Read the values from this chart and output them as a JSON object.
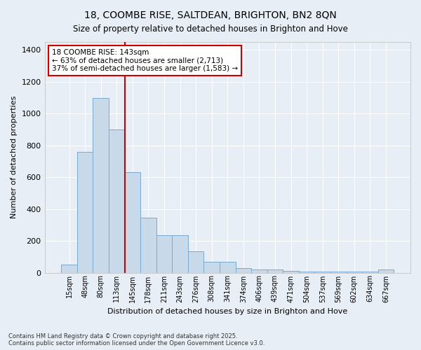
{
  "title1": "18, COOMBE RISE, SALTDEAN, BRIGHTON, BN2 8QN",
  "title2": "Size of property relative to detached houses in Brighton and Hove",
  "xlabel": "Distribution of detached houses by size in Brighton and Hove",
  "ylabel": "Number of detached properties",
  "categories": [
    "15sqm",
    "48sqm",
    "80sqm",
    "113sqm",
    "145sqm",
    "178sqm",
    "211sqm",
    "243sqm",
    "276sqm",
    "308sqm",
    "341sqm",
    "374sqm",
    "406sqm",
    "439sqm",
    "471sqm",
    "504sqm",
    "537sqm",
    "569sqm",
    "602sqm",
    "634sqm",
    "667sqm"
  ],
  "bar_heights": [
    50,
    760,
    1100,
    900,
    630,
    345,
    235,
    235,
    135,
    70,
    70,
    30,
    20,
    20,
    10,
    5,
    5,
    5,
    5,
    5,
    18
  ],
  "bar_color": "#c8daea",
  "bar_edge_color": "#7baad0",
  "vline_color": "#cc0000",
  "annotation_text": "18 COOMBE RISE: 143sqm\n← 63% of detached houses are smaller (2,713)\n37% of semi-detached houses are larger (1,583) →",
  "annotation_box_color": "#ffffff",
  "annotation_box_edge_color": "#cc0000",
  "background_color": "#e8eef5",
  "grid_color": "#ffffff",
  "yticks": [
    0,
    200,
    400,
    600,
    800,
    1000,
    1200,
    1400
  ],
  "ylim_max": 1450,
  "footer": "Contains HM Land Registry data © Crown copyright and database right 2025.\nContains public sector information licensed under the Open Government Licence v3.0."
}
